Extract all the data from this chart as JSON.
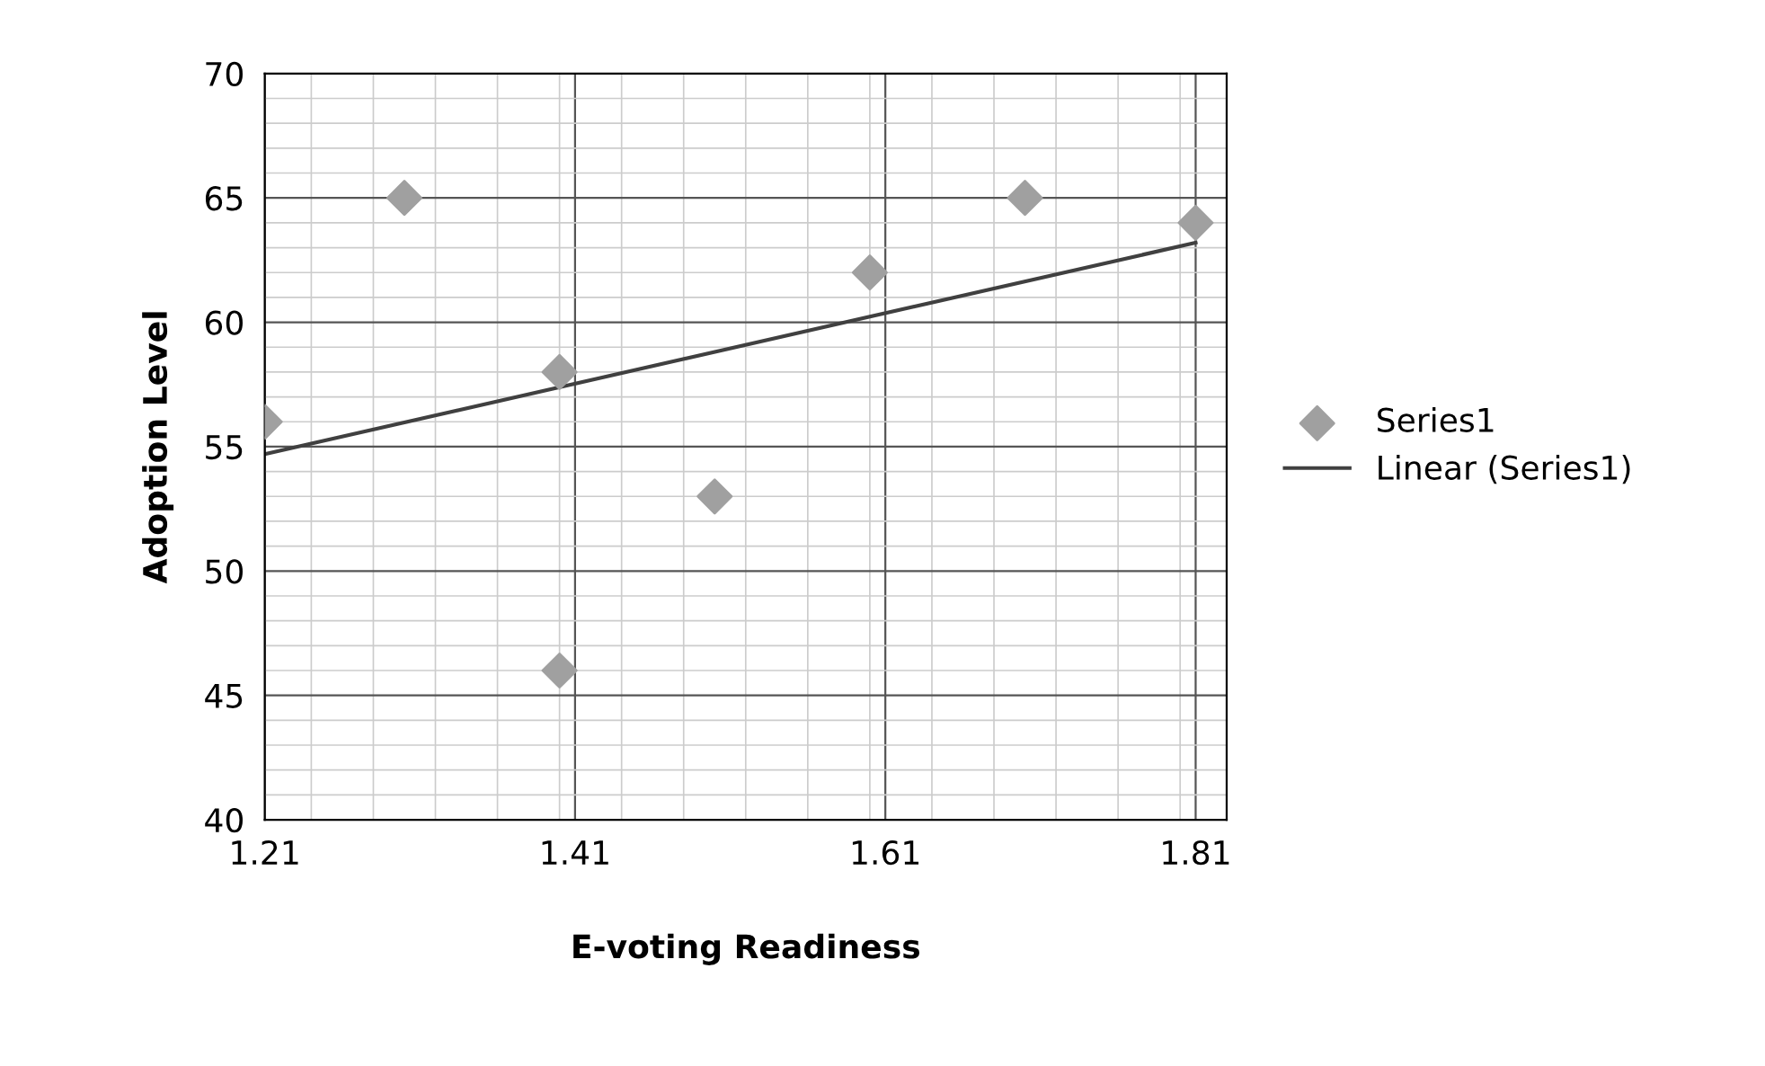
{
  "chart_data": {
    "type": "scatter",
    "xlabel": "E-voting Readiness",
    "ylabel": "Adoption Level",
    "xlim": [
      1.21,
      1.83
    ],
    "xticks": [
      1.21,
      1.41,
      1.61,
      1.81
    ],
    "ylim": [
      40,
      70
    ],
    "yticks": [
      40,
      45,
      50,
      55,
      60,
      65,
      70
    ],
    "grid": true,
    "legend": "right",
    "marker": "diamond",
    "series": [
      {
        "name": "Series1",
        "color": "#a0a0a0",
        "x": [
          1.21,
          1.3,
          1.4,
          1.4,
          1.5,
          1.6,
          1.7,
          1.81
        ],
        "values": [
          56,
          65,
          58,
          46,
          53,
          62,
          65,
          64
        ]
      },
      {
        "name": "Linear (Series1)",
        "type": "line",
        "color": "#404040",
        "line_style": "solid",
        "marker": "none",
        "x": [
          1.21,
          1.81
        ],
        "values": [
          54.7,
          63.2
        ]
      }
    ]
  }
}
